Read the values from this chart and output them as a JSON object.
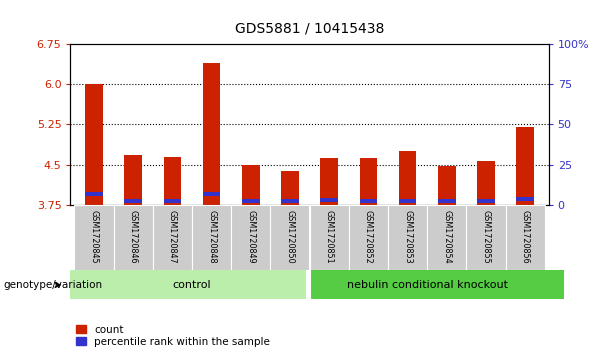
{
  "title": "GDS5881 / 10415438",
  "samples": [
    "GSM1720845",
    "GSM1720846",
    "GSM1720847",
    "GSM1720848",
    "GSM1720849",
    "GSM1720850",
    "GSM1720851",
    "GSM1720852",
    "GSM1720853",
    "GSM1720854",
    "GSM1720855",
    "GSM1720856"
  ],
  "red_values": [
    5.99,
    4.68,
    4.65,
    6.38,
    4.5,
    4.38,
    4.62,
    4.62,
    4.75,
    4.48,
    4.57,
    5.2
  ],
  "blue_values": [
    3.96,
    3.82,
    3.82,
    3.95,
    3.82,
    3.82,
    3.85,
    3.82,
    3.83,
    3.82,
    3.82,
    3.86
  ],
  "ymin": 3.75,
  "ymax": 6.75,
  "yticks_left": [
    3.75,
    4.5,
    5.25,
    6.0,
    6.75
  ],
  "yticks_right": [
    0,
    25,
    50,
    75,
    100
  ],
  "grid_values": [
    4.5,
    5.25,
    6.0
  ],
  "n_control": 6,
  "control_label": "control",
  "knockout_label": "nebulin conditional knockout",
  "group_label": "genotype/variation",
  "legend_red": "count",
  "legend_blue": "percentile rank within the sample",
  "bar_width": 0.45,
  "red_color": "#cc2200",
  "blue_color": "#3333cc",
  "control_bg": "#bbeeaa",
  "knockout_bg": "#55cc44",
  "sample_bg": "#cccccc",
  "plot_bg": "#ffffff"
}
